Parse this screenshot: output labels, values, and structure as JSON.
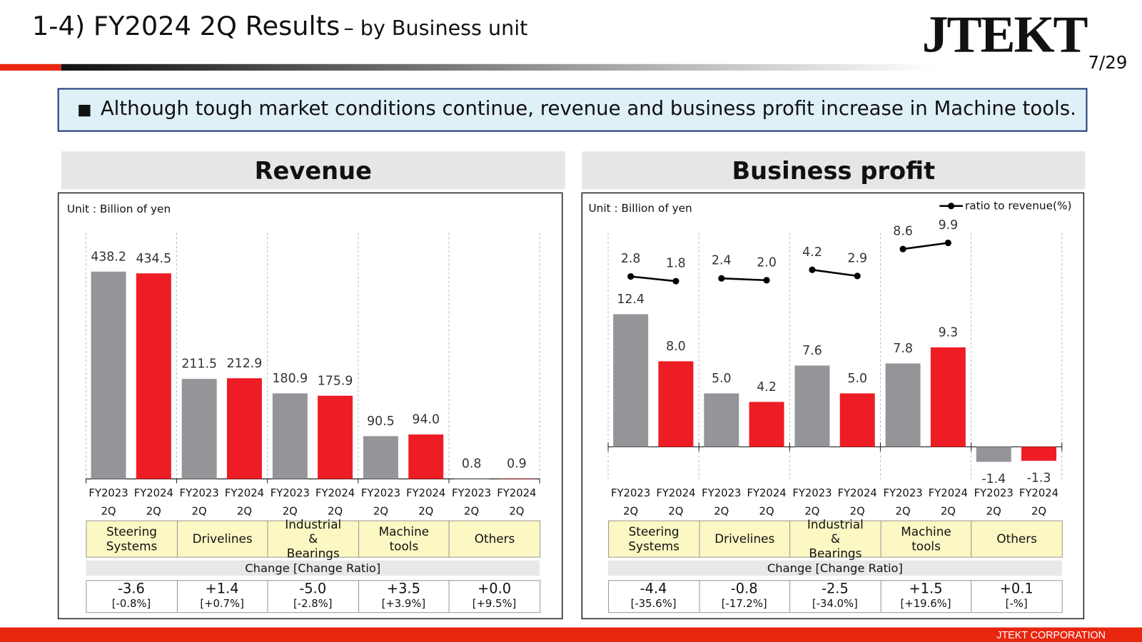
{
  "header": {
    "title": "1-4) FY2024 2Q Results",
    "subtitle": "– by Business unit",
    "logo": "JTEKT",
    "page": "7/29"
  },
  "bullet": "Although tough market conditions continue, revenue and business profit increase in Machine tools.",
  "footer": "JTEKT CORPORATION",
  "chart_data": [
    {
      "type": "bar",
      "title": "Revenue",
      "unit": "Unit : Billion of yen",
      "categories": [
        "Steering Systems",
        "Drivelines",
        "Industrial & Bearings",
        "Machine tools",
        "Others"
      ],
      "series": [
        {
          "name": "FY2023 2Q",
          "color": "#939598",
          "values": [
            438.2,
            211.5,
            180.9,
            90.5,
            0.8
          ],
          "value_labels": [
            "438.2",
            "211.5",
            "180.9",
            "90.5",
            "0.8"
          ]
        },
        {
          "name": "FY2024 2Q",
          "color": "#ee1c25",
          "values": [
            434.5,
            212.9,
            175.9,
            94.0,
            0.9
          ],
          "value_labels": [
            "434.5",
            "212.9",
            "175.9",
            "94.0",
            "0.9"
          ]
        }
      ],
      "ylim": [
        0,
        520
      ],
      "change_header": "Change [Change Ratio]",
      "changes": [
        "-3.6",
        "+1.4",
        "-5.0",
        "+3.5",
        "+0.0"
      ],
      "change_ratios": [
        "[-0.8%]",
        "[+0.7%]",
        "[-2.8%]",
        "[+3.9%]",
        "[+9.5%]"
      ]
    },
    {
      "type": "bar",
      "title": "Business profit",
      "unit": "Unit : Billion of yen",
      "categories": [
        "Steering Systems",
        "Drivelines",
        "Industrial & Bearings",
        "Machine tools",
        "Others"
      ],
      "series": [
        {
          "name": "FY2023 2Q",
          "color": "#939598",
          "values": [
            12.4,
            5.0,
            7.6,
            7.8,
            -1.4
          ],
          "value_labels": [
            "12.4",
            "5.0",
            "7.6",
            "7.8",
            "-1.4"
          ]
        },
        {
          "name": "FY2024 2Q",
          "color": "#ee1c25",
          "values": [
            8.0,
            4.2,
            5.0,
            9.3,
            -1.3
          ],
          "value_labels": [
            "8.0",
            "4.2",
            "5.0",
            "9.3",
            "-1.3"
          ]
        },
        {
          "name": "ratio to revenue(%)",
          "type": "line",
          "axis": "y2",
          "color": "#000000",
          "values": [
            [
              2.8,
              1.8
            ],
            [
              2.4,
              2.0
            ],
            [
              4.2,
              2.9
            ],
            [
              8.6,
              9.9
            ],
            null
          ],
          "value_labels": [
            [
              "2.8",
              "1.8"
            ],
            [
              "2.4",
              "2.0"
            ],
            [
              "4.2",
              "2.9"
            ],
            [
              "8.6",
              "9.9"
            ],
            null
          ]
        }
      ],
      "ylim": [
        -3,
        20
      ],
      "y2lim": [
        -40,
        12
      ],
      "legend": "top-right",
      "change_header": "Change [Change Ratio]",
      "changes": [
        "-4.4",
        "-0.8",
        "-2.5",
        "+1.5",
        "+0.1"
      ],
      "change_ratios": [
        "[-35.6%]",
        "[-17.2%]",
        "[-34.0%]",
        "[+19.6%]",
        "[-%]"
      ]
    }
  ]
}
